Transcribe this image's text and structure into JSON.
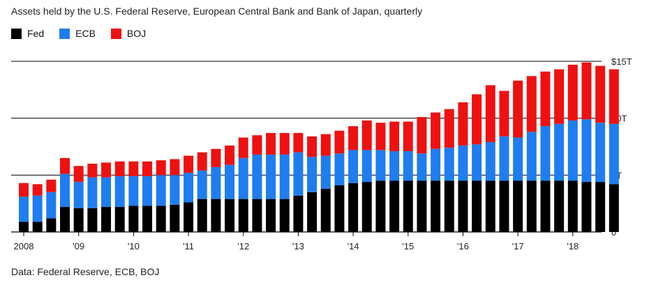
{
  "title": "Assets held by the U.S. Federal Reserve, European Central Bank and Bank of Japan, quarterly",
  "source": "Data: Federal Reserve, ECB, BOJ",
  "colors": {
    "Fed": "#000000",
    "ECB": "#1f7df0",
    "BOJ": "#ee1111",
    "grid": "#000000"
  },
  "chart_data": {
    "type": "bar",
    "stacked": true,
    "title": "Assets held by the U.S. Federal Reserve, European Central Bank and Bank of Japan, quarterly",
    "xlabel": "",
    "ylabel": "",
    "ylim": [
      0,
      15
    ],
    "yticks": [
      0,
      5,
      10,
      15
    ],
    "ytick_labels": [
      "0",
      "5T",
      "10T",
      "$15T"
    ],
    "grid": "horizontal",
    "legend": "top-left",
    "xtick_labels": [
      {
        "label": "2008",
        "index": 0
      },
      {
        "label": "'09",
        "index": 4
      },
      {
        "label": "'10",
        "index": 8
      },
      {
        "label": "'11",
        "index": 12
      },
      {
        "label": "'12",
        "index": 16
      },
      {
        "label": "'13",
        "index": 20
      },
      {
        "label": "'14",
        "index": 24
      },
      {
        "label": "'15",
        "index": 28
      },
      {
        "label": "'16",
        "index": 32
      },
      {
        "label": "'17",
        "index": 36
      },
      {
        "label": "'18",
        "index": 40
      }
    ],
    "categories": [
      "2007Q4",
      "2008Q1",
      "2008Q2",
      "2008Q3",
      "2008Q4",
      "2009Q1",
      "2009Q2",
      "2009Q3",
      "2009Q4",
      "2010Q1",
      "2010Q2",
      "2010Q3",
      "2010Q4",
      "2011Q1",
      "2011Q2",
      "2011Q3",
      "2011Q4",
      "2012Q1",
      "2012Q2",
      "2012Q3",
      "2012Q4",
      "2013Q1",
      "2013Q2",
      "2013Q3",
      "2013Q4",
      "2014Q1",
      "2014Q2",
      "2014Q3",
      "2014Q4",
      "2015Q1",
      "2015Q2",
      "2015Q3",
      "2015Q4",
      "2016Q1",
      "2016Q2",
      "2016Q3",
      "2016Q4",
      "2017Q1",
      "2017Q2",
      "2017Q3",
      "2017Q4",
      "2018Q1",
      "2018Q2",
      "2018Q3"
    ],
    "series": [
      {
        "name": "Fed",
        "values": [
          0.9,
          0.9,
          1.2,
          2.2,
          2.1,
          2.1,
          2.2,
          2.2,
          2.3,
          2.3,
          2.3,
          2.4,
          2.6,
          2.9,
          2.9,
          2.9,
          2.9,
          2.9,
          2.9,
          2.9,
          3.2,
          3.5,
          3.8,
          4.1,
          4.3,
          4.4,
          4.5,
          4.5,
          4.5,
          4.5,
          4.5,
          4.5,
          4.5,
          4.5,
          4.5,
          4.5,
          4.5,
          4.5,
          4.5,
          4.5,
          4.5,
          4.4,
          4.4,
          4.2
        ]
      },
      {
        "name": "ECB",
        "values": [
          2.2,
          2.3,
          2.3,
          2.9,
          2.3,
          2.7,
          2.6,
          2.7,
          2.6,
          2.6,
          2.7,
          2.6,
          2.6,
          2.5,
          2.8,
          3.0,
          3.6,
          3.9,
          3.9,
          3.9,
          3.8,
          3.1,
          2.9,
          2.8,
          2.9,
          2.8,
          2.7,
          2.6,
          2.6,
          2.4,
          2.8,
          2.9,
          3.1,
          3.2,
          3.4,
          3.9,
          3.8,
          4.3,
          4.8,
          5.0,
          5.3,
          5.5,
          5.2,
          5.3
        ]
      },
      {
        "name": "BOJ",
        "values": [
          1.2,
          1.0,
          1.1,
          1.4,
          1.4,
          1.2,
          1.3,
          1.3,
          1.3,
          1.3,
          1.3,
          1.4,
          1.5,
          1.6,
          1.6,
          1.7,
          1.8,
          1.7,
          1.9,
          1.9,
          1.7,
          1.8,
          1.9,
          2.0,
          2.1,
          2.6,
          2.4,
          2.6,
          2.6,
          3.2,
          3.2,
          3.4,
          3.8,
          4.4,
          5.0,
          4.0,
          5.0,
          4.9,
          4.8,
          4.8,
          4.9,
          5.0,
          5.0,
          4.8
        ]
      }
    ]
  }
}
